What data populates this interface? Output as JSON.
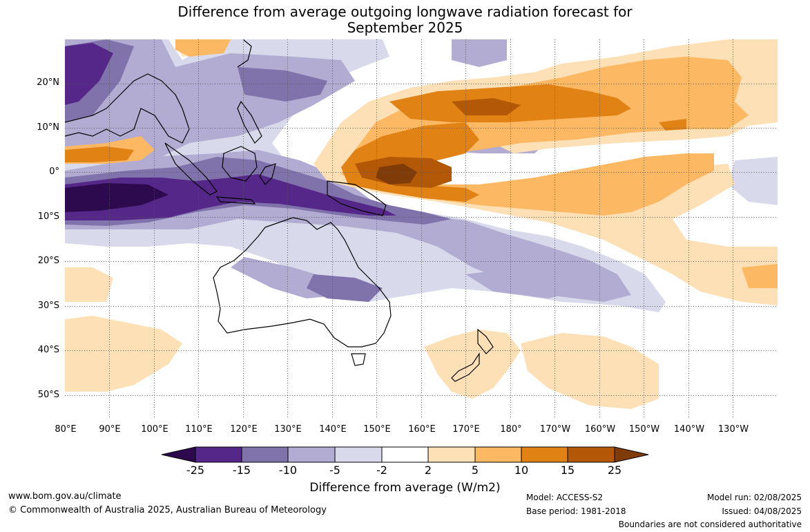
{
  "title_line1": "Difference from average outgoing longwave radiation forecast for",
  "title_line2": "September 2025",
  "lat_labels": [
    "20°N",
    "10°N",
    "0°",
    "10°S",
    "20°S",
    "30°S",
    "40°S",
    "50°S"
  ],
  "lon_labels": [
    "80°E",
    "90°E",
    "100°E",
    "110°E",
    "120°E",
    "130°E",
    "140°E",
    "150°E",
    "160°E",
    "170°E",
    "180°",
    "170°W",
    "160°W",
    "150°W",
    "140°W",
    "130°W"
  ],
  "colorbar": {
    "ticks": [
      "-25",
      "-15",
      "-10",
      "-5",
      "-2",
      "2",
      "5",
      "10",
      "15",
      "25"
    ],
    "colors": [
      "#2d0a4e",
      "#542788",
      "#8073ac",
      "#b2abd2",
      "#d8daeb",
      "#ffffff",
      "#fee0b6",
      "#fdb863",
      "#e08214",
      "#b35806",
      "#7f3b08"
    ],
    "label": "Difference from average (W/m2)"
  },
  "footer": {
    "url": "www.bom.gov.au/climate",
    "copyright": "© Commonwealth of Australia 2025, Australian Bureau of Meteorology",
    "model": "Model: ACCESS-S2",
    "base_period": "Base period: 1981-2018",
    "model_run": "Model run: 02/08/2025",
    "issued": "Issued: 04/08/2025",
    "disclaimer": "Boundaries are not considered authoritative"
  }
}
